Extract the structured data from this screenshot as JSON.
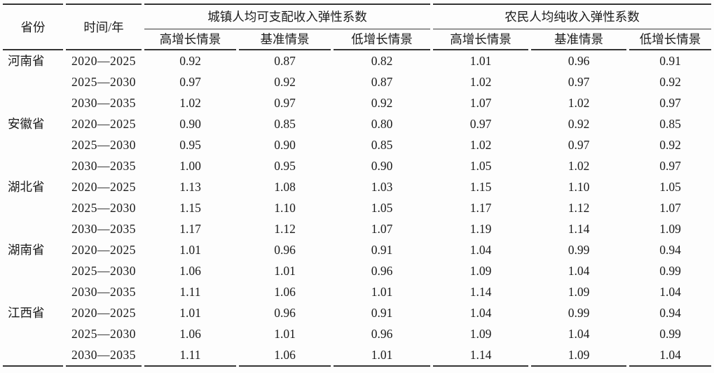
{
  "colors": {
    "text": "#1b1b1b",
    "rule": "#343434",
    "background": "#fdfdfd"
  },
  "table": {
    "headers": {
      "province": "省份",
      "time": "时间/年",
      "urban_group": "城镇人均可支配收入弹性系数",
      "rural_group": "农民人均纯收入弹性系数",
      "scenarios": [
        "高增长情景",
        "基准情景",
        "低增长情景"
      ]
    },
    "rows": [
      {
        "province": "河南省",
        "period": "2020—2025",
        "urban": [
          "0.92",
          "0.87",
          "0.82"
        ],
        "rural": [
          "1.01",
          "0.96",
          "0.91"
        ]
      },
      {
        "province": "",
        "period": "2025—2030",
        "urban": [
          "0.97",
          "0.92",
          "0.87"
        ],
        "rural": [
          "1.02",
          "0.97",
          "0.92"
        ]
      },
      {
        "province": "",
        "period": "2030—2035",
        "urban": [
          "1.02",
          "0.97",
          "0.92"
        ],
        "rural": [
          "1.07",
          "1.02",
          "0.97"
        ]
      },
      {
        "province": "安徽省",
        "period": "2020—2025",
        "urban": [
          "0.90",
          "0.85",
          "0.80"
        ],
        "rural": [
          "0.97",
          "0.92",
          "0.85"
        ]
      },
      {
        "province": "",
        "period": "2025—2030",
        "urban": [
          "0.95",
          "0.90",
          "0.85"
        ],
        "rural": [
          "1.02",
          "0.97",
          "0.92"
        ]
      },
      {
        "province": "",
        "period": "2030—2035",
        "urban": [
          "1.00",
          "0.95",
          "0.90"
        ],
        "rural": [
          "1.05",
          "1.02",
          "0.97"
        ]
      },
      {
        "province": "湖北省",
        "period": "2020—2025",
        "urban": [
          "1.13",
          "1.08",
          "1.03"
        ],
        "rural": [
          "1.15",
          "1.10",
          "1.05"
        ]
      },
      {
        "province": "",
        "period": "2025—2030",
        "urban": [
          "1.15",
          "1.10",
          "1.05"
        ],
        "rural": [
          "1.17",
          "1.12",
          "1.07"
        ]
      },
      {
        "province": "",
        "period": "2030—2035",
        "urban": [
          "1.17",
          "1.12",
          "1.07"
        ],
        "rural": [
          "1.19",
          "1.14",
          "1.09"
        ]
      },
      {
        "province": "湖南省",
        "period": "2020—2025",
        "urban": [
          "1.01",
          "0.96",
          "0.91"
        ],
        "rural": [
          "1.04",
          "0.99",
          "0.94"
        ]
      },
      {
        "province": "",
        "period": "2025—2030",
        "urban": [
          "1.06",
          "1.01",
          "0.96"
        ],
        "rural": [
          "1.09",
          "1.04",
          "0.99"
        ]
      },
      {
        "province": "",
        "period": "2030—2035",
        "urban": [
          "1.11",
          "1.06",
          "1.01"
        ],
        "rural": [
          "1.14",
          "1.09",
          "1.04"
        ]
      },
      {
        "province": "江西省",
        "period": "2020—2025",
        "urban": [
          "1.01",
          "0.96",
          "0.91"
        ],
        "rural": [
          "1.04",
          "0.99",
          "0.94"
        ]
      },
      {
        "province": "",
        "period": "2025—2030",
        "urban": [
          "1.06",
          "1.01",
          "0.96"
        ],
        "rural": [
          "1.09",
          "1.04",
          "0.99"
        ]
      },
      {
        "province": "",
        "period": "2030—2035",
        "urban": [
          "1.11",
          "1.06",
          "1.01"
        ],
        "rural": [
          "1.14",
          "1.09",
          "1.04"
        ]
      }
    ]
  }
}
